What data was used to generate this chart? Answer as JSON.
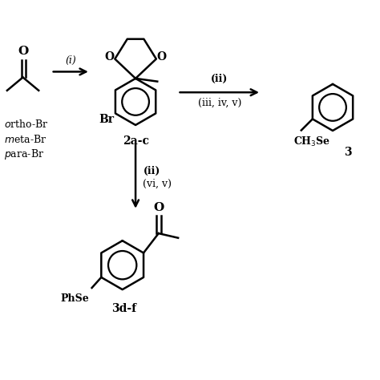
{
  "background_color": "#ffffff",
  "line_color": "#000000",
  "line_width": 1.8,
  "font_size": 9,
  "bold_font_size": 10,
  "xlim": [
    0,
    10
  ],
  "ylim": [
    0,
    10
  ]
}
